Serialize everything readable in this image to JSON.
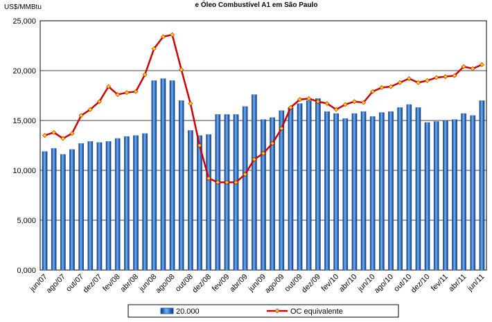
{
  "chart_data": {
    "type": "bar-line",
    "title": "e Óleo Combustível A1 em São Paulo",
    "y_label": "US$/MMBtu",
    "categories": [
      "jun/07",
      null,
      "ago/07",
      null,
      "out/07",
      null,
      "dez/07",
      null,
      "fev/08",
      null,
      "abr/08",
      null,
      "jun/08",
      null,
      "ago/08",
      null,
      "out/08",
      null,
      "dez/08",
      null,
      "fev/09",
      null,
      "abr/09",
      null,
      "jun/09",
      null,
      "ago/09",
      null,
      "out/09",
      null,
      "dez/09",
      null,
      "fev/10",
      null,
      "abr/10",
      null,
      "jun/10",
      null,
      "ago/10",
      null,
      "out/10",
      null,
      "dez/10",
      null,
      "fev/11",
      null,
      "abr/11",
      null,
      "jun/11"
    ],
    "series": [
      {
        "name": "20.000",
        "type": "bar",
        "color": "#1f5fbf",
        "values": [
          11.9,
          12.2,
          11.6,
          12.1,
          12.7,
          12.9,
          12.8,
          12.9,
          13.2,
          13.4,
          13.5,
          13.7,
          19.0,
          19.2,
          19.0,
          17.0,
          14.0,
          13.5,
          13.6,
          15.6,
          15.6,
          15.6,
          16.4,
          17.6,
          15.1,
          15.3,
          16.0,
          16.3,
          16.7,
          17.0,
          17.2,
          15.9,
          15.7,
          15.2,
          15.7,
          15.9,
          15.4,
          15.8,
          15.9,
          16.3,
          16.6,
          16.3,
          14.8,
          14.9,
          15.0,
          15.1,
          15.7,
          15.5,
          17.0
        ]
      },
      {
        "name": "OC equivalente",
        "type": "line",
        "color": "#cc0000",
        "marker_color": "#ffd700",
        "values": [
          13.5,
          13.8,
          13.2,
          13.7,
          15.5,
          16.1,
          16.9,
          18.4,
          17.6,
          17.8,
          17.9,
          19.6,
          22.2,
          23.4,
          23.6,
          20.1,
          16.7,
          12.5,
          9.2,
          8.8,
          8.8,
          8.8,
          9.6,
          11.1,
          11.7,
          12.7,
          14.2,
          16.3,
          17.1,
          17.2,
          16.9,
          16.7,
          16.1,
          16.6,
          16.9,
          16.8,
          17.9,
          18.3,
          18.4,
          18.8,
          19.2,
          18.8,
          19.0,
          19.3,
          19.4,
          19.5,
          20.4,
          20.2,
          20.6
        ]
      }
    ],
    "ylim": [
      0,
      25
    ],
    "yticks": [
      {
        "value": 0,
        "label": "0,000"
      },
      {
        "value": 5,
        "label": "5,000"
      },
      {
        "value": 10,
        "label": "10,000"
      },
      {
        "value": 15,
        "label": "15,000"
      },
      {
        "value": 20,
        "label": "20,000"
      },
      {
        "value": 25,
        "label": "25,000"
      }
    ],
    "grid": true
  }
}
